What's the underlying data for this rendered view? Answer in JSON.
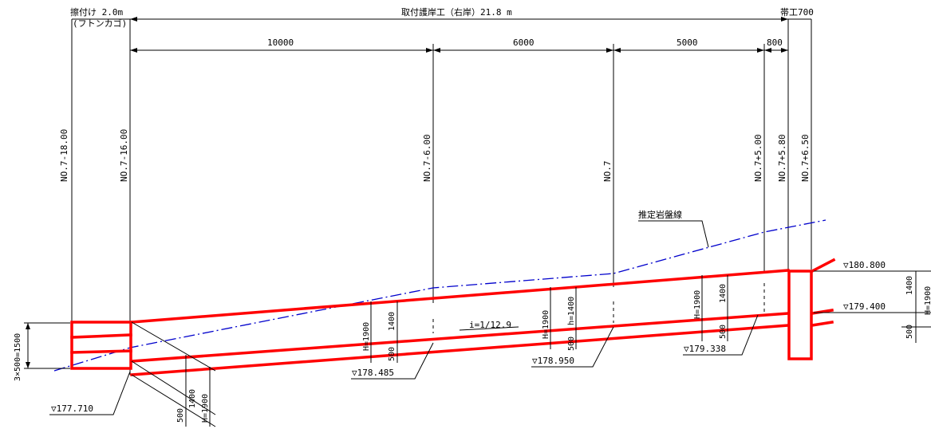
{
  "top_labels": {
    "left": "擦付け 2.0m",
    "left_sub": "(フトンカゴ)",
    "center": "取付護岸工（右岸）21.8 m",
    "right": "帯工700"
  },
  "spans": [
    "10000",
    "6000",
    "5000",
    "800"
  ],
  "stations": [
    "NO.7-18.00",
    "NO.7-16.00",
    "NO.7-6.00",
    "NO.7",
    "NO.7+5.00",
    "NO.7+5.80",
    "NO.7+6.50"
  ],
  "rock_line_label": "推定岩盤線",
  "slope_label": "i=1/12.9",
  "elevations": [
    "▽180.800",
    "▽179.400",
    "▽177.710",
    "▽178.485",
    "▽178.950",
    "▽179.338"
  ],
  "left_dims": {
    "stack": "3×500=1500"
  },
  "section_dims": {
    "H": "H=1900",
    "h": "h=1400",
    "inner": "1400",
    "base": "500",
    "right_H": "H=1900"
  }
}
